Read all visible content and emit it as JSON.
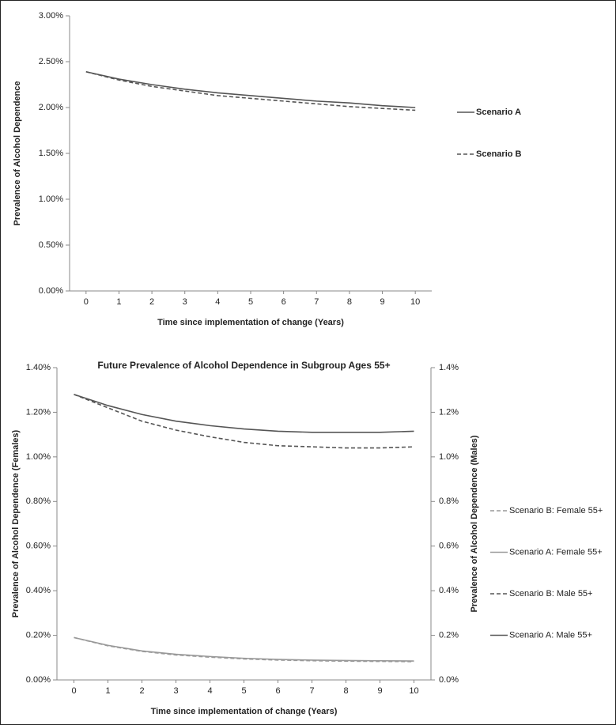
{
  "chart_data": [
    {
      "type": "line",
      "x_label": "Time since implementation of change (Years)",
      "y_label": "Prevalence of Alcohol Dependence",
      "x": [
        0,
        1,
        2,
        3,
        4,
        5,
        6,
        7,
        8,
        9,
        10
      ],
      "xlim": [
        -0.5,
        10.5
      ],
      "xticks": [
        0,
        1,
        2,
        3,
        4,
        5,
        6,
        7,
        8,
        9,
        10
      ],
      "ylim": [
        0,
        3
      ],
      "yticks": [
        {
          "value": 0,
          "label": "0.00%"
        },
        {
          "value": 0.5,
          "label": "0.50%"
        },
        {
          "value": 1,
          "label": "1.00%"
        },
        {
          "value": 1.5,
          "label": "1.50%"
        },
        {
          "value": 2,
          "label": "2.00%"
        },
        {
          "value": 2.5,
          "label": "2.50%"
        },
        {
          "value": 3,
          "label": "3.00%"
        }
      ],
      "legend": "right",
      "series": [
        {
          "name": "Scenario A",
          "color": "#555555",
          "line_style": "solid",
          "values": [
            2.39,
            2.31,
            2.25,
            2.2,
            2.16,
            2.13,
            2.1,
            2.07,
            2.05,
            2.02,
            2.0
          ]
        },
        {
          "name": "Scenario B",
          "color": "#555555",
          "line_style": "dashed",
          "values": [
            2.39,
            2.3,
            2.23,
            2.18,
            2.13,
            2.1,
            2.07,
            2.04,
            2.01,
            1.99,
            1.97
          ]
        }
      ]
    },
    {
      "type": "line",
      "title": "Future Prevalence of Alcohol Dependence in Subgroup Ages 55+",
      "x_label": "Time since implementation of change (Years)",
      "y_label": "Prevalence of Alcohol Dependence (Females)",
      "y2_label": "Prevalence of Alcohol Dependence (Males)",
      "x": [
        0,
        1,
        2,
        3,
        4,
        5,
        6,
        7,
        8,
        9,
        10
      ],
      "xlim": [
        -0.5,
        10.5
      ],
      "xticks": [
        0,
        1,
        2,
        3,
        4,
        5,
        6,
        7,
        8,
        9,
        10
      ],
      "ylim": [
        0,
        1.4
      ],
      "yticks": [
        {
          "value": 0,
          "label": "0.00%"
        },
        {
          "value": 0.2,
          "label": "0.20%"
        },
        {
          "value": 0.4,
          "label": "0.40%"
        },
        {
          "value": 0.6,
          "label": "0.60%"
        },
        {
          "value": 0.8,
          "label": "0.80%"
        },
        {
          "value": 1,
          "label": "1.00%"
        },
        {
          "value": 1.2,
          "label": "1.20%"
        },
        {
          "value": 1.4,
          "label": "1.40%"
        }
      ],
      "y2lim": [
        0,
        1.4
      ],
      "y2ticks": [
        {
          "value": 0,
          "label": "0.0%"
        },
        {
          "value": 0.2,
          "label": "0.2%"
        },
        {
          "value": 0.4,
          "label": "0.4%"
        },
        {
          "value": 0.6,
          "label": "0.6%"
        },
        {
          "value": 0.8,
          "label": "0.8%"
        },
        {
          "value": 1,
          "label": "1.0%"
        },
        {
          "value": 1.2,
          "label": "1.2%"
        },
        {
          "value": 1.4,
          "label": "1.4%"
        }
      ],
      "legend": "right",
      "series": [
        {
          "name": "Scenario B: Female 55+",
          "color": "#999999",
          "line_style": "dashed",
          "values": [
            0.19,
            0.153,
            0.128,
            0.112,
            0.102,
            0.094,
            0.089,
            0.086,
            0.084,
            0.083,
            0.082
          ]
        },
        {
          "name": "Scenario A: Female 55+",
          "color": "#999999",
          "line_style": "solid",
          "values": [
            0.19,
            0.155,
            0.13,
            0.115,
            0.105,
            0.097,
            0.092,
            0.089,
            0.087,
            0.086,
            0.085
          ]
        },
        {
          "name": "Scenario B: Male 55+",
          "color": "#555555",
          "line_style": "dashed",
          "axis": "y2",
          "values": [
            1.28,
            1.22,
            1.16,
            1.12,
            1.09,
            1.065,
            1.05,
            1.045,
            1.04,
            1.04,
            1.045
          ]
        },
        {
          "name": "Scenario A: Male 55+",
          "color": "#555555",
          "line_style": "solid",
          "axis": "y2",
          "values": [
            1.28,
            1.23,
            1.19,
            1.16,
            1.14,
            1.125,
            1.115,
            1.11,
            1.11,
            1.11,
            1.115
          ]
        }
      ]
    }
  ]
}
